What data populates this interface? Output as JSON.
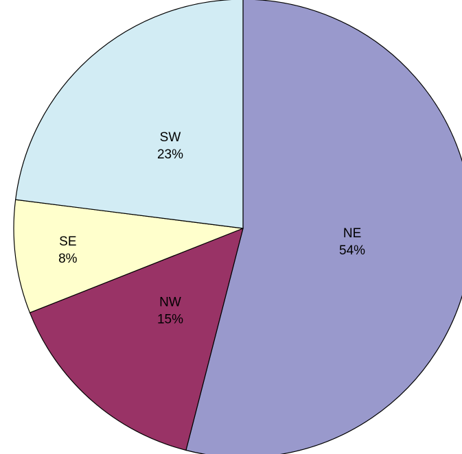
{
  "chart_data": {
    "type": "pie",
    "categories": [
      "NE",
      "NW",
      "SE",
      "SW"
    ],
    "values": [
      54,
      15,
      8,
      23
    ],
    "value_labels": [
      "54%",
      "15%",
      "8%",
      "23%"
    ],
    "colors": [
      "#9999cc",
      "#993366",
      "#ffffcc",
      "#d2ecf4"
    ]
  }
}
